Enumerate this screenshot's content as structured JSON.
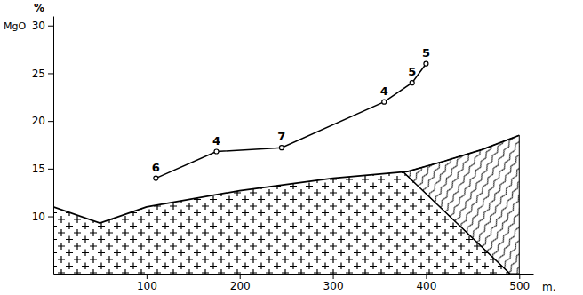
{
  "chart_data": {
    "type": "line",
    "y_unit": "%",
    "y_label": "MgO",
    "x_label": "m.",
    "xlim": [
      0,
      515
    ],
    "xticks": [
      100,
      200,
      300,
      400,
      500
    ],
    "ylim": [
      4,
      31
    ],
    "yticks": [
      10,
      15,
      20,
      25,
      30
    ],
    "series": [
      {
        "x": [
          110,
          175,
          245,
          355,
          385,
          400
        ],
        "values": [
          14,
          16.8,
          17.2,
          22,
          24,
          26
        ],
        "point_labels": [
          6,
          4,
          7,
          4,
          5,
          5
        ],
        "color": "#000000",
        "marker": "circle"
      }
    ],
    "profile": {
      "x": [
        0,
        50,
        100,
        200,
        300,
        380,
        420,
        460,
        500
      ],
      "y": [
        11,
        9.3,
        11,
        12.7,
        14,
        14.7,
        15.8,
        17,
        18.5
      ]
    },
    "contact": {
      "x": [
        375,
        490
      ],
      "y": [
        14.7,
        4
      ]
    }
  }
}
